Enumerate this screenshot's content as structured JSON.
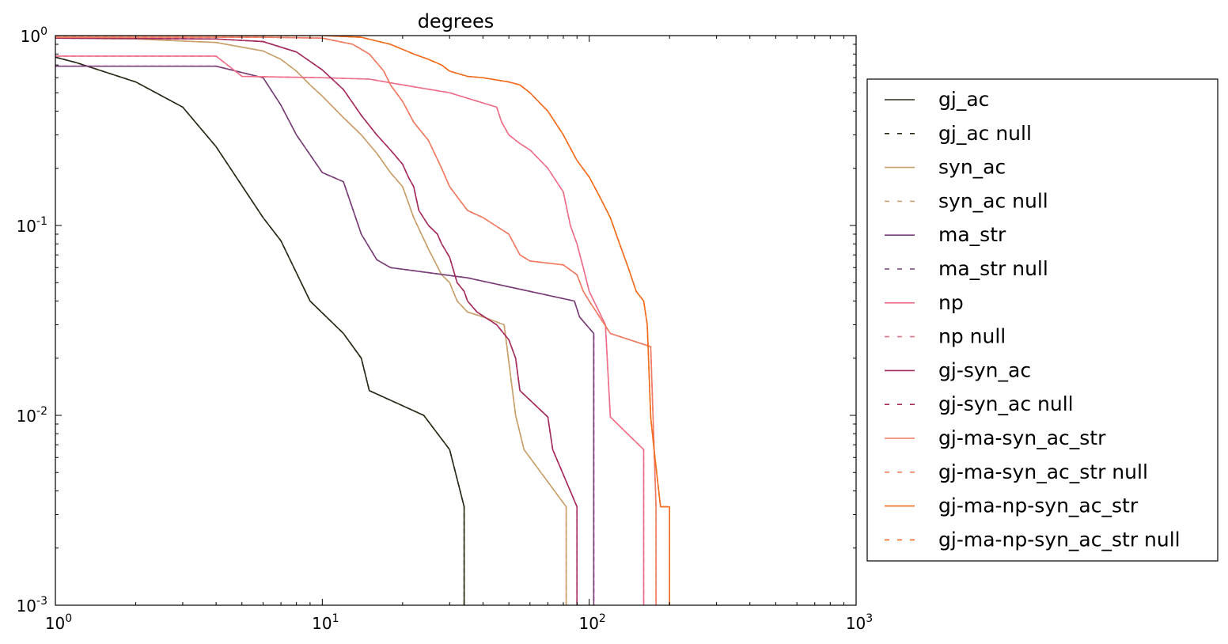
{
  "chart_data": {
    "type": "line",
    "title": "degrees",
    "xlabel": "",
    "ylabel": "",
    "xscale": "log",
    "yscale": "log",
    "xlim": [
      1,
      1000
    ],
    "ylim": [
      0.001,
      1
    ],
    "x_ticks": [
      {
        "base": "10",
        "exp": "0"
      },
      {
        "base": "10",
        "exp": "1"
      },
      {
        "base": "10",
        "exp": "2"
      },
      {
        "base": "10",
        "exp": "3"
      }
    ],
    "y_ticks": [
      {
        "base": "10",
        "exp": "0"
      },
      {
        "base": "10",
        "exp": "-1"
      },
      {
        "base": "10",
        "exp": "-2"
      },
      {
        "base": "10",
        "exp": "-3"
      }
    ],
    "legend_position": "outside-right",
    "series": [
      {
        "name": "gj_ac",
        "color": "#2b2a19",
        "dash": "solid",
        "x": [
          1,
          1.2,
          2,
          3,
          4,
          6,
          7,
          9,
          12,
          14,
          15,
          24,
          30,
          34,
          34
        ],
        "y": [
          0.77,
          0.72,
          0.57,
          0.42,
          0.26,
          0.11,
          0.083,
          0.04,
          0.027,
          0.02,
          0.0135,
          0.01,
          0.0066,
          0.0033,
          0.001
        ]
      },
      {
        "name": "gj_ac null",
        "color": "#2b2a19",
        "dash": "dashed",
        "x": [
          1,
          1.2,
          2,
          3,
          4,
          6,
          7,
          9,
          12,
          14,
          15,
          24,
          30,
          34,
          34
        ],
        "y": [
          0.77,
          0.72,
          0.57,
          0.42,
          0.26,
          0.11,
          0.083,
          0.04,
          0.027,
          0.02,
          0.0135,
          0.01,
          0.0066,
          0.0033,
          0.001
        ]
      },
      {
        "name": "syn_ac",
        "color": "#c9a06b",
        "dash": "solid",
        "x": [
          1,
          2,
          4,
          6,
          7,
          8,
          9,
          10,
          12,
          14,
          16,
          18,
          20,
          22,
          25,
          28,
          30,
          32,
          35,
          40,
          48,
          53,
          57,
          82,
          82
        ],
        "y": [
          0.97,
          0.96,
          0.92,
          0.83,
          0.75,
          0.65,
          0.55,
          0.48,
          0.37,
          0.3,
          0.24,
          0.19,
          0.16,
          0.11,
          0.075,
          0.055,
          0.05,
          0.04,
          0.035,
          0.033,
          0.03,
          0.01,
          0.0066,
          0.0033,
          0.001
        ]
      },
      {
        "name": "syn_ac null",
        "color": "#c9a06b",
        "dash": "dashed",
        "x": [
          1,
          2,
          4,
          6,
          7,
          8,
          9,
          10,
          12,
          14,
          16,
          18,
          20,
          22,
          25,
          28,
          30,
          32,
          35,
          40,
          48,
          53,
          57,
          82,
          82
        ],
        "y": [
          0.97,
          0.96,
          0.92,
          0.83,
          0.75,
          0.65,
          0.55,
          0.48,
          0.37,
          0.3,
          0.24,
          0.19,
          0.16,
          0.11,
          0.075,
          0.055,
          0.05,
          0.04,
          0.035,
          0.033,
          0.03,
          0.01,
          0.0066,
          0.0033,
          0.001
        ]
      },
      {
        "name": "ma_str",
        "color": "#7a3f78",
        "dash": "solid",
        "x": [
          1,
          4,
          6,
          7,
          8,
          10,
          12,
          14,
          16,
          18,
          35,
          88,
          92,
          104,
          104
        ],
        "y": [
          0.69,
          0.69,
          0.6,
          0.43,
          0.3,
          0.19,
          0.17,
          0.09,
          0.066,
          0.06,
          0.053,
          0.04,
          0.033,
          0.027,
          0.001
        ]
      },
      {
        "name": "ma_str null",
        "color": "#7a3f78",
        "dash": "dashed",
        "x": [
          1,
          4,
          6,
          7,
          8,
          10,
          12,
          14,
          16,
          18,
          35,
          88,
          92,
          104,
          104
        ],
        "y": [
          0.69,
          0.69,
          0.6,
          0.43,
          0.3,
          0.19,
          0.17,
          0.09,
          0.066,
          0.06,
          0.053,
          0.04,
          0.033,
          0.027,
          0.001
        ]
      },
      {
        "name": "np",
        "color": "#ee6f8a",
        "dash": "solid",
        "x": [
          1,
          4,
          5,
          10,
          15,
          20,
          30,
          45,
          47,
          50,
          55,
          60,
          70,
          80,
          85,
          90,
          95,
          100,
          115,
          120,
          160,
          160
        ],
        "y": [
          0.78,
          0.78,
          0.61,
          0.6,
          0.59,
          0.55,
          0.5,
          0.42,
          0.35,
          0.3,
          0.27,
          0.25,
          0.2,
          0.15,
          0.1,
          0.08,
          0.06,
          0.045,
          0.03,
          0.0098,
          0.0066,
          0.001
        ]
      },
      {
        "name": "np null",
        "color": "#ee6f8a",
        "dash": "dashed",
        "x": [
          1,
          4,
          5,
          10,
          15,
          20,
          30,
          45,
          47,
          50,
          55,
          60,
          70,
          80,
          85,
          90,
          95,
          100,
          115,
          120,
          160,
          160
        ],
        "y": [
          0.78,
          0.78,
          0.61,
          0.6,
          0.59,
          0.55,
          0.5,
          0.42,
          0.35,
          0.3,
          0.27,
          0.25,
          0.2,
          0.15,
          0.1,
          0.08,
          0.06,
          0.045,
          0.03,
          0.0098,
          0.0066,
          0.001
        ]
      },
      {
        "name": "gj-syn_ac",
        "color": "#a52d5e",
        "dash": "solid",
        "x": [
          1,
          4,
          6,
          8,
          10,
          12,
          14,
          16,
          18,
          20,
          21,
          22,
          23,
          25,
          27,
          28,
          30,
          32,
          34,
          35,
          38,
          45,
          50,
          53,
          55,
          70,
          73,
          90,
          90
        ],
        "y": [
          0.97,
          0.96,
          0.93,
          0.82,
          0.66,
          0.52,
          0.38,
          0.3,
          0.25,
          0.21,
          0.18,
          0.16,
          0.12,
          0.1,
          0.09,
          0.08,
          0.068,
          0.05,
          0.045,
          0.04,
          0.035,
          0.03,
          0.025,
          0.02,
          0.0135,
          0.0098,
          0.0066,
          0.0033,
          0.001
        ]
      },
      {
        "name": "gj-syn_ac null",
        "color": "#a52d5e",
        "dash": "dashed",
        "x": [
          1,
          4,
          6,
          8,
          10,
          12,
          14,
          16,
          18,
          20,
          21,
          22,
          23,
          25,
          27,
          28,
          30,
          32,
          34,
          35,
          38,
          45,
          50,
          53,
          55,
          70,
          73,
          90,
          90
        ],
        "y": [
          0.97,
          0.96,
          0.93,
          0.82,
          0.66,
          0.52,
          0.38,
          0.3,
          0.25,
          0.21,
          0.18,
          0.16,
          0.12,
          0.1,
          0.09,
          0.08,
          0.068,
          0.05,
          0.045,
          0.04,
          0.035,
          0.03,
          0.025,
          0.02,
          0.0135,
          0.0098,
          0.0066,
          0.0033,
          0.001
        ]
      },
      {
        "name": "gj-ma-syn_ac_str",
        "color": "#f07b63",
        "dash": "solid",
        "x": [
          1,
          6,
          10,
          13,
          15,
          17,
          18,
          20,
          22,
          25,
          28,
          30,
          35,
          40,
          50,
          55,
          60,
          80,
          90,
          95,
          100,
          120,
          170,
          178,
          178
        ],
        "y": [
          0.98,
          0.98,
          0.97,
          0.9,
          0.8,
          0.65,
          0.55,
          0.45,
          0.35,
          0.28,
          0.2,
          0.16,
          0.12,
          0.11,
          0.09,
          0.07,
          0.065,
          0.062,
          0.055,
          0.045,
          0.04,
          0.027,
          0.023,
          0.0033,
          0.001
        ]
      },
      {
        "name": "gj-ma-syn_ac_str null",
        "color": "#f07b63",
        "dash": "dashed",
        "x": [
          1,
          6,
          10,
          13,
          15,
          17,
          18,
          20,
          22,
          25,
          28,
          30,
          35,
          40,
          50,
          55,
          60,
          80,
          90,
          95,
          100,
          120,
          170,
          178,
          178
        ],
        "y": [
          0.98,
          0.98,
          0.97,
          0.9,
          0.8,
          0.65,
          0.55,
          0.45,
          0.35,
          0.28,
          0.2,
          0.16,
          0.12,
          0.11,
          0.09,
          0.07,
          0.065,
          0.062,
          0.055,
          0.045,
          0.04,
          0.027,
          0.023,
          0.0033,
          0.001
        ]
      },
      {
        "name": "gj-ma-np-syn_ac_str",
        "color": "#f26c1e",
        "dash": "solid",
        "x": [
          1,
          10,
          14,
          18,
          22,
          25,
          28,
          30,
          35,
          40,
          50,
          55,
          60,
          70,
          80,
          90,
          100,
          110,
          120,
          130,
          140,
          150,
          160,
          165,
          170,
          175,
          185,
          200,
          200
        ],
        "y": [
          1.0,
          1.0,
          0.98,
          0.9,
          0.8,
          0.75,
          0.7,
          0.65,
          0.61,
          0.6,
          0.57,
          0.55,
          0.5,
          0.4,
          0.3,
          0.22,
          0.18,
          0.14,
          0.11,
          0.08,
          0.06,
          0.045,
          0.04,
          0.03,
          0.0098,
          0.0066,
          0.0033,
          0.0033,
          0.001
        ]
      },
      {
        "name": "gj-ma-np-syn_ac_str null",
        "color": "#f26c1e",
        "dash": "dashed",
        "x": [
          1,
          10,
          14,
          18,
          22,
          25,
          28,
          30,
          35,
          40,
          50,
          55,
          60,
          70,
          80,
          90,
          100,
          110,
          120,
          130,
          140,
          150,
          160,
          165,
          170,
          175,
          185,
          200,
          200
        ],
        "y": [
          1.0,
          1.0,
          0.98,
          0.9,
          0.8,
          0.75,
          0.7,
          0.65,
          0.61,
          0.6,
          0.57,
          0.55,
          0.5,
          0.4,
          0.3,
          0.22,
          0.18,
          0.14,
          0.11,
          0.08,
          0.06,
          0.045,
          0.04,
          0.03,
          0.0098,
          0.0066,
          0.0033,
          0.0033,
          0.001
        ]
      }
    ]
  }
}
